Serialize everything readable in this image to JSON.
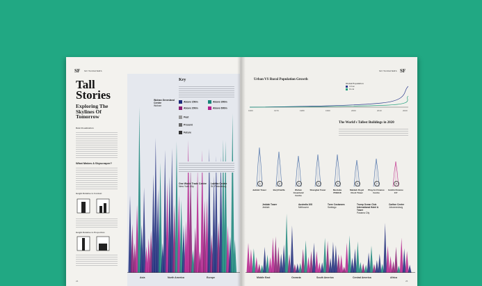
{
  "magazine": {
    "brand": "SF",
    "section_left": "SKYSCRAPERS",
    "section_right": "SKYSCRAPERS",
    "title": "Tall Stories",
    "subtitle": "Exploring The Skylines Of Tomorrow",
    "byline": "Data Visualization",
    "sidebar_heading": "What Makes A Skyscraper?",
    "height_label_1": "Height Relative to Context",
    "height_label_2": "Height Relative to Proportion",
    "key": {
      "heading": "Key",
      "items": [
        {
          "label": "Above 150m",
          "color": "#1d2a7a"
        },
        {
          "label": "Above 300m",
          "color": "#19857a"
        },
        {
          "label": "Above 200m",
          "color": "#8a1d73"
        },
        {
          "label": "Above 600m",
          "color": "#b41e8c"
        }
      ],
      "status": [
        "Past",
        "Present",
        "Future"
      ]
    },
    "left_annotations": [
      {
        "name": "Wuhan Greenland Centre",
        "detail": "Wuhan"
      },
      {
        "name": "One World Trade Centre",
        "detail": "New York City"
      },
      {
        "name": "Lakhta Centre",
        "detail": "St. Petersburg"
      }
    ],
    "left_regions": [
      "Asia",
      "North America",
      "Europe"
    ],
    "right_regions": [
      "Middle East",
      "Oceania",
      "South America",
      "Central America",
      "Africa"
    ],
    "right_annotations": [
      {
        "name": "Jeddah Tower",
        "detail": "Jeddah"
      },
      {
        "name": "Australia 108",
        "detail": "Melbourne"
      },
      {
        "name": "Torre Costanera",
        "detail": "Santiago"
      },
      {
        "name": "Trump Ocean Club International Hotel & Tower",
        "detail": "Panama City"
      },
      {
        "name": "Carlton Centre",
        "detail": "Johannesburg"
      }
    ],
    "growth_title": "Urban VS Rural Population Growth",
    "growth_legend_title": "Global Population",
    "growth_series": [
      "Urban",
      "Rural"
    ],
    "growth_years": [
      "1960",
      "1970",
      "1980",
      "1990",
      "2000",
      "2010",
      "2020"
    ],
    "tallest_title": "The World's Tallest Buildings in 2020",
    "buildings": [
      {
        "num": "1",
        "name": "Jeddah Tower"
      },
      {
        "num": "2",
        "name": "Burj Khalifa"
      },
      {
        "num": "3",
        "name": "Wuhan Greenland Centre"
      },
      {
        "num": "4",
        "name": "Shanghai Tower"
      },
      {
        "num": "5",
        "name": "Merdeka PNB118"
      },
      {
        "num": "6",
        "name": "Makkah Royal Clock Tower"
      },
      {
        "num": "7",
        "name": "Ping An Finance Centre"
      },
      {
        "num": "8",
        "name": "Goldin Finance 117"
      }
    ],
    "page_left": "24",
    "page_right": "25"
  }
}
